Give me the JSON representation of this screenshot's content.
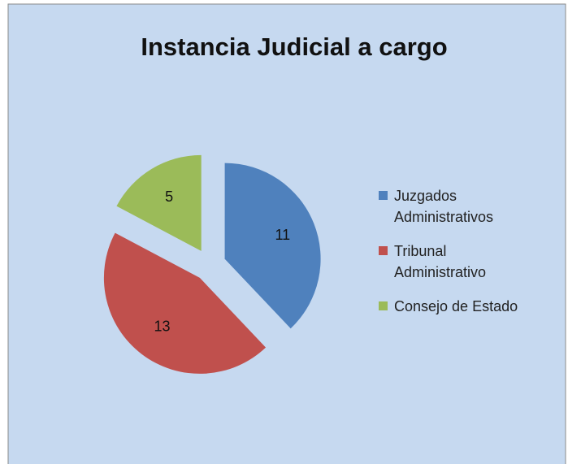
{
  "chart_data": {
    "type": "pie",
    "title": "Instancia Judicial a cargo",
    "categories": [
      "Juzgados Administrativos",
      "Tribunal Administrativo",
      "Consejo de Estado"
    ],
    "values": [
      11,
      13,
      5
    ],
    "colors": [
      "#4f81bd",
      "#c0504d",
      "#9bbb59"
    ],
    "legend": "right"
  }
}
